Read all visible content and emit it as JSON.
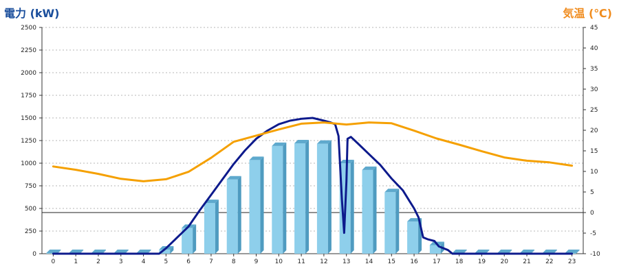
{
  "chart_data": {
    "type": "bar+line",
    "left_axis_title": "電力 (kW)",
    "right_axis_title": "気温 (℃)",
    "categories": [
      "0",
      "1",
      "2",
      "3",
      "4",
      "5",
      "6",
      "7",
      "8",
      "9",
      "10",
      "11",
      "12",
      "13",
      "14",
      "15",
      "16",
      "17",
      "18",
      "19",
      "20",
      "21",
      "22",
      "23"
    ],
    "y_left": {
      "min": 0,
      "max": 2500,
      "ticks": [
        0,
        250,
        500,
        750,
        1000,
        1250,
        1500,
        1750,
        2000,
        2250,
        2500
      ]
    },
    "y_right": {
      "min": -10,
      "max": 45,
      "ticks": [
        -10,
        -5,
        0,
        5,
        10,
        15,
        20,
        25,
        30,
        35,
        40,
        45
      ]
    },
    "grid": "horizontal dotted",
    "reference_line": {
      "axis": "right",
      "value": 0
    },
    "bar_series": {
      "axis": "left",
      "color": "#8ecfeb",
      "values": [
        5,
        5,
        5,
        5,
        5,
        45,
        285,
        560,
        820,
        1035,
        1190,
        1220,
        1215,
        1000,
        925,
        680,
        355,
        95,
        5,
        5,
        5,
        5,
        5,
        5
      ]
    },
    "line_series": [
      {
        "axis": "left",
        "color": "#0d1a8c",
        "points": [
          [
            0,
            0
          ],
          [
            1,
            0
          ],
          [
            2,
            0
          ],
          [
            3,
            0
          ],
          [
            4,
            0
          ],
          [
            4.7,
            0
          ],
          [
            5,
            60
          ],
          [
            5.5,
            180
          ],
          [
            6,
            300
          ],
          [
            6.5,
            480
          ],
          [
            7,
            650
          ],
          [
            7.5,
            820
          ],
          [
            8,
            990
          ],
          [
            8.5,
            1140
          ],
          [
            9,
            1270
          ],
          [
            9.5,
            1360
          ],
          [
            10,
            1430
          ],
          [
            10.5,
            1470
          ],
          [
            11,
            1490
          ],
          [
            11.5,
            1500
          ],
          [
            12,
            1470
          ],
          [
            12.3,
            1450
          ],
          [
            12.5,
            1430
          ],
          [
            12.65,
            1300
          ],
          [
            12.8,
            600
          ],
          [
            12.9,
            230
          ],
          [
            13,
            800
          ],
          [
            13.05,
            1270
          ],
          [
            13.2,
            1290
          ],
          [
            13.5,
            1220
          ],
          [
            14,
            1100
          ],
          [
            14.5,
            980
          ],
          [
            15,
            830
          ],
          [
            15.5,
            700
          ],
          [
            15.8,
            580
          ],
          [
            16,
            500
          ],
          [
            16.2,
            400
          ],
          [
            16.4,
            180
          ],
          [
            16.6,
            160
          ],
          [
            16.9,
            140
          ],
          [
            17.1,
            80
          ],
          [
            17.5,
            40
          ],
          [
            17.7,
            0
          ],
          [
            18,
            0
          ],
          [
            19,
            0
          ],
          [
            20,
            0
          ],
          [
            21,
            0
          ],
          [
            22,
            0
          ],
          [
            23,
            0
          ]
        ]
      },
      {
        "axis": "right",
        "color": "#f5a000",
        "points": [
          [
            0,
            11.2
          ],
          [
            1,
            10.4
          ],
          [
            2,
            9.4
          ],
          [
            3,
            8.2
          ],
          [
            4,
            7.6
          ],
          [
            5,
            8.1
          ],
          [
            6,
            9.9
          ],
          [
            7,
            13.3
          ],
          [
            8,
            17.2
          ],
          [
            9,
            18.7
          ],
          [
            10,
            20.2
          ],
          [
            11,
            21.6
          ],
          [
            12,
            21.9
          ],
          [
            13,
            21.4
          ],
          [
            14,
            21.9
          ],
          [
            15,
            21.7
          ],
          [
            16,
            19.9
          ],
          [
            17,
            18.0
          ],
          [
            18,
            16.5
          ],
          [
            19,
            14.9
          ],
          [
            20,
            13.4
          ],
          [
            21,
            12.6
          ],
          [
            22,
            12.2
          ],
          [
            23,
            11.4
          ]
        ]
      }
    ]
  }
}
